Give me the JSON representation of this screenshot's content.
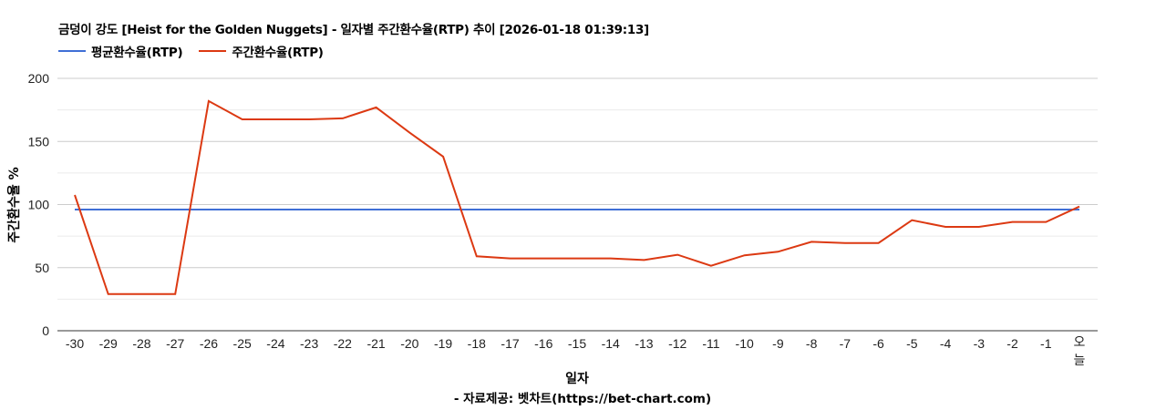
{
  "title": "금덩이 강도 [Heist for the Golden Nuggets] - 일자별 주간환수율(RTP) 추이 [2026-01-18 01:39:13]",
  "legend": [
    {
      "label": "평균환수율(RTP)",
      "color": "#3f6fd6"
    },
    {
      "label": "주간환수율(RTP)",
      "color": "#dc3912"
    }
  ],
  "footer": "- 자료제공: 벳차트(https://bet-chart.com)",
  "chart_data": {
    "type": "line",
    "title": "금덩이 강도 [Heist for the Golden Nuggets] - 일자별 주간환수율(RTP) 추이 [2026-01-18 01:39:13]",
    "xlabel": "일자",
    "ylabel": "주간환수율 %",
    "ylim": [
      0,
      200
    ],
    "yticks": [
      0,
      50,
      100,
      150,
      200
    ],
    "grid": true,
    "legend_position": "top",
    "categories": [
      "-30",
      "-29",
      "-28",
      "-27",
      "-26",
      "-25",
      "-24",
      "-23",
      "-22",
      "-21",
      "-20",
      "-19",
      "-18",
      "-17",
      "-16",
      "-15",
      "-14",
      "-13",
      "-12",
      "-11",
      "-10",
      "-9",
      "-8",
      "-7",
      "-6",
      "-5",
      "-4",
      "-3",
      "-2",
      "-1",
      "오늘"
    ],
    "series": [
      {
        "name": "평균환수율(RTP)",
        "color": "#3f6fd6",
        "values": [
          96,
          96,
          96,
          96,
          96,
          96,
          96,
          96,
          96,
          96,
          96,
          96,
          96,
          96,
          96,
          96,
          96,
          96,
          96,
          96,
          96,
          96,
          96,
          96,
          96,
          96,
          96,
          96,
          96,
          96,
          96
        ]
      },
      {
        "name": "주간환수율(RTP)",
        "color": "#dc3912",
        "values": [
          107.6,
          29,
          29,
          29,
          182,
          167.5,
          167.5,
          167.5,
          168.3,
          177,
          157,
          138,
          59,
          57.3,
          57.3,
          57.3,
          57.3,
          56,
          60.2,
          51.5,
          59.8,
          62.6,
          70.5,
          69.5,
          69.5,
          87.6,
          82.3,
          82.3,
          86.2,
          86.2,
          98.4
        ]
      }
    ]
  }
}
